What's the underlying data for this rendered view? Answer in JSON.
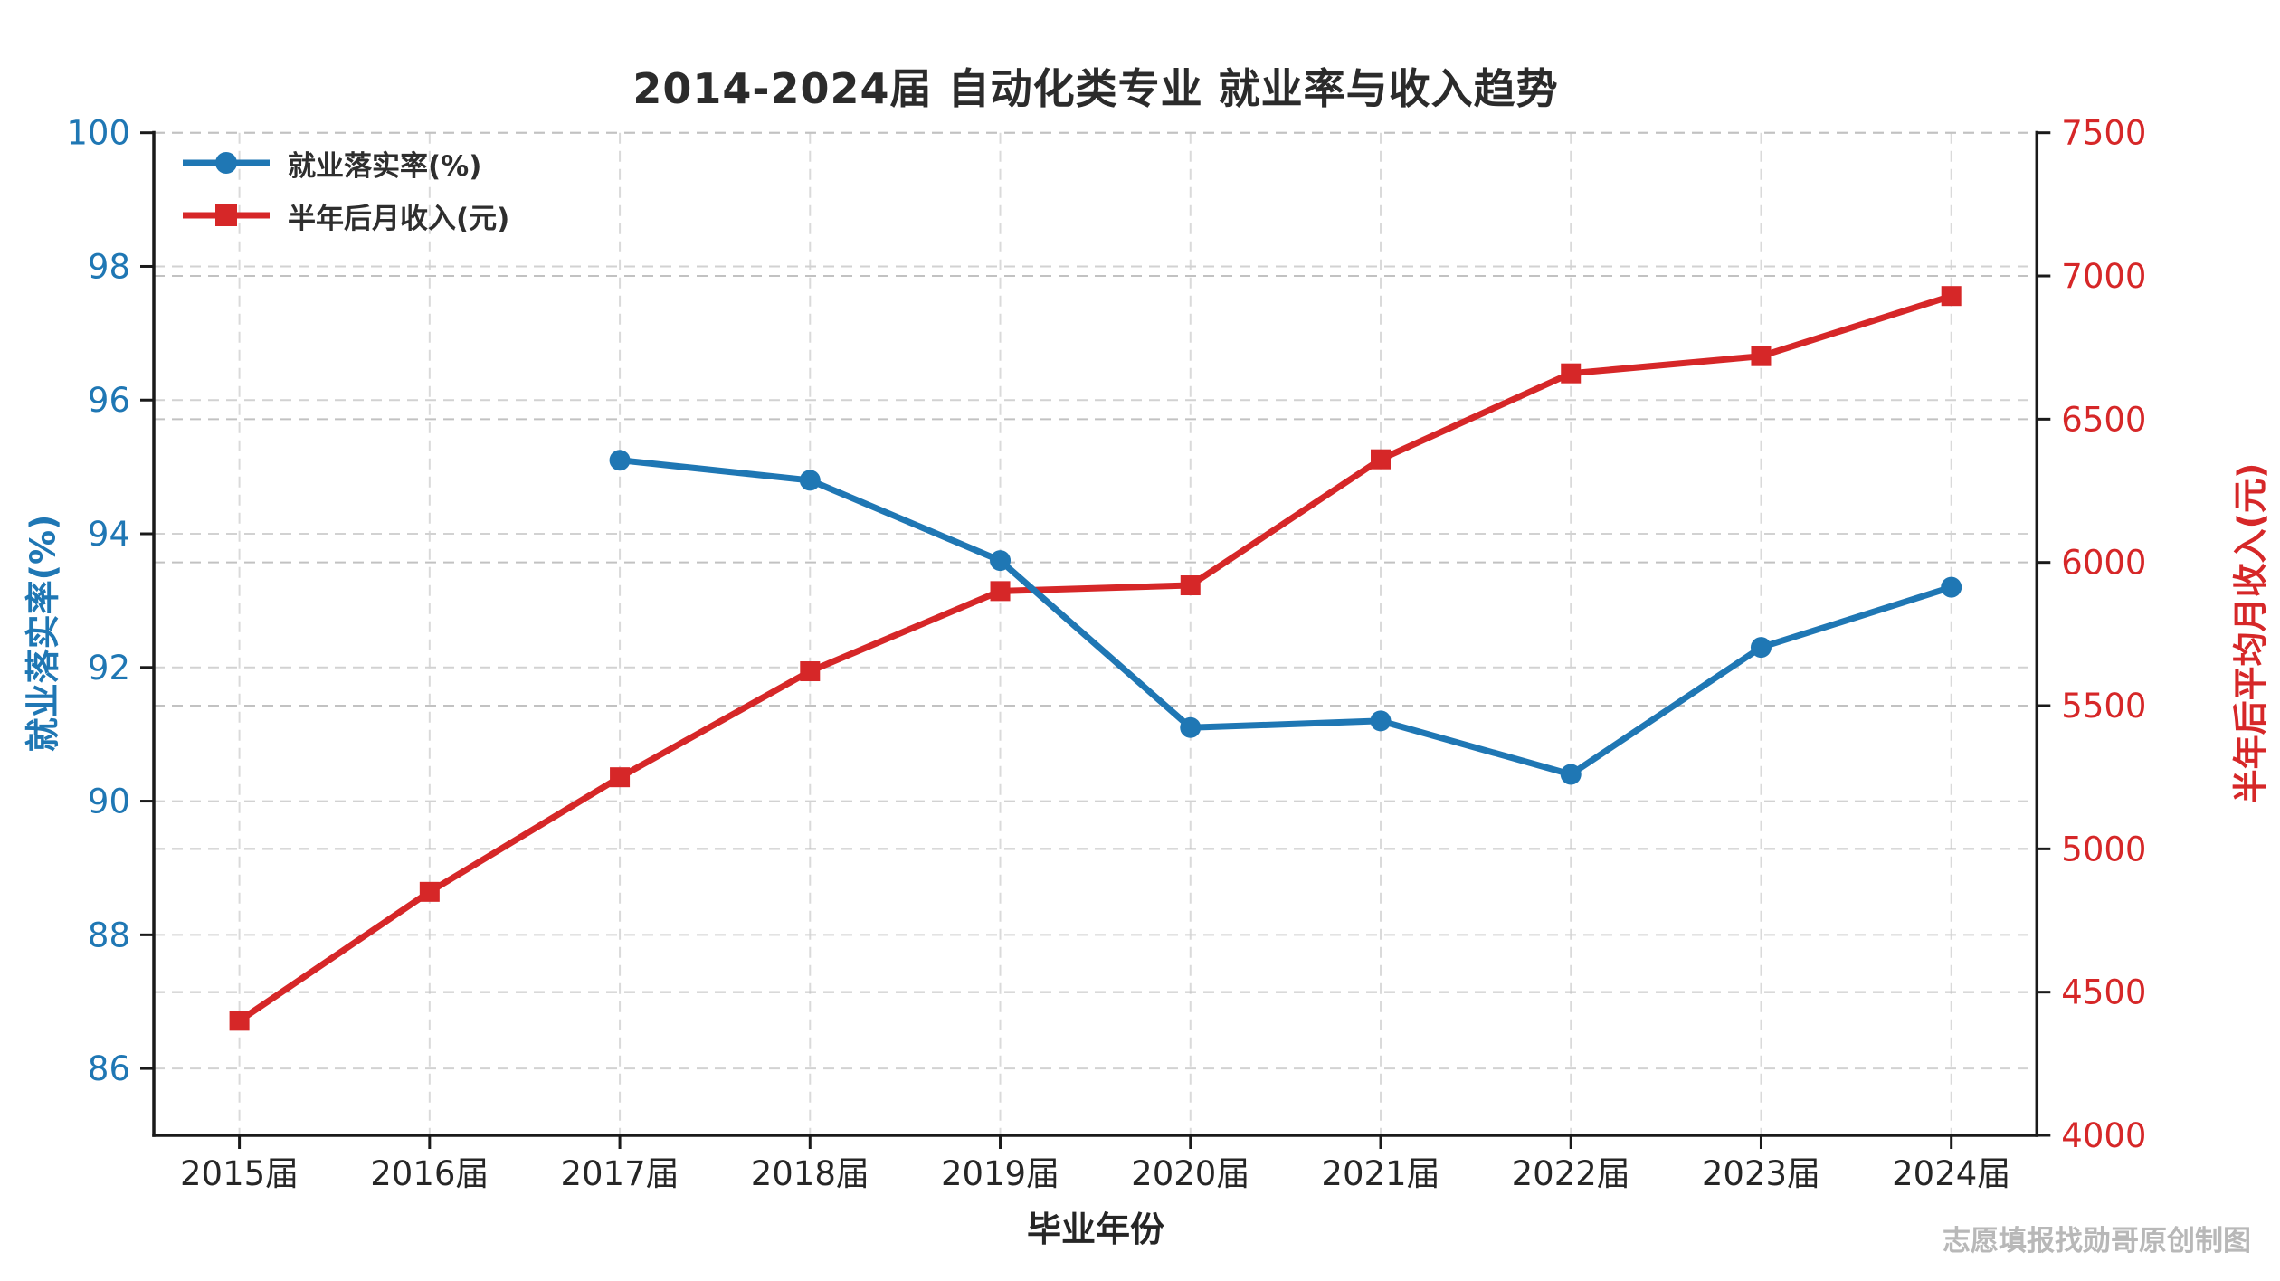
{
  "title": "2014-2024届 自动化类专业 就业率与收入趋势",
  "watermark": "志愿填报找勋哥原创制图",
  "colors": {
    "blue": "#1f77b4",
    "red": "#d62728",
    "spine": "#1a1a1a",
    "grid_left": "#d2d2d2",
    "grid_right": "#c2c2c2",
    "grid_vertical": "#dadada",
    "xtick_label": "#262626",
    "title_text": "#2b2b2b",
    "watermark_text": "#b8b8b8"
  },
  "chart_data": {
    "type": "line",
    "title": "2014-2024届 自动化类专业 就业率与收入趋势",
    "xlabel": "毕业年份",
    "categories": [
      "2015届",
      "2016届",
      "2017届",
      "2018届",
      "2019届",
      "2020届",
      "2021届",
      "2022届",
      "2023届",
      "2024届"
    ],
    "series": [
      {
        "name": "就业落实率(%)",
        "axis": "left",
        "color": "#1f77b4",
        "marker": "circle",
        "values": [
          null,
          null,
          95.1,
          94.8,
          93.6,
          91.1,
          91.2,
          90.4,
          92.3,
          93.2
        ]
      },
      {
        "name": "半年后月收入(元)",
        "axis": "right",
        "color": "#d62728",
        "marker": "square",
        "values": [
          4400,
          4850,
          5250,
          5620,
          5900,
          5920,
          6360,
          6660,
          6720,
          6930
        ]
      }
    ],
    "left_axis": {
      "label": "就业落实率(%)",
      "min": 85,
      "max": 100,
      "ticks": [
        86,
        88,
        90,
        92,
        94,
        96,
        98,
        100
      ],
      "color": "#1f77b4"
    },
    "right_axis": {
      "label": "半年后平均月收入(元)",
      "min": 4000,
      "max": 7500,
      "ticks": [
        4000,
        4500,
        5000,
        5500,
        6000,
        6500,
        7000,
        7500
      ],
      "color": "#d62728"
    },
    "grid": true,
    "legend_position": "upper-left"
  }
}
